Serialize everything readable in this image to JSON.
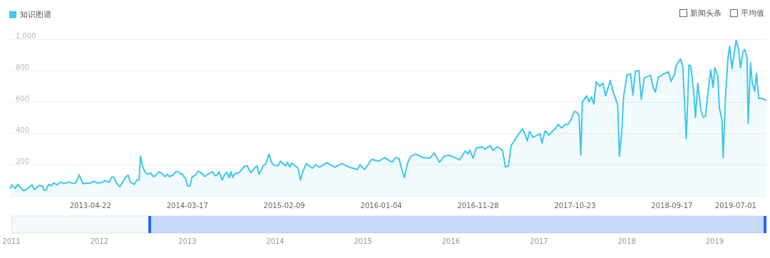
{
  "chart_data": {
    "type": "area",
    "legend": "top left",
    "grid": "y",
    "xlim": [
      "2012-07-23",
      "2019-08-04"
    ],
    "xticks": [
      "2013-04-22",
      "2014-03-17",
      "2015-02-09",
      "2016-01-04",
      "2016-11-28",
      "2017-10-23",
      "2018-09-17",
      "2019-07-01"
    ],
    "ylim": [
      0,
      1000
    ],
    "yticks": [
      {
        "value": 0,
        "label": null
      },
      200,
      400,
      600,
      800,
      {
        "value": 1000,
        "label": "1,000"
      }
    ],
    "x2lim": [
      "2011-01-01",
      "2019-08-04"
    ],
    "x2ticks": [
      "2011",
      "2012",
      "2013",
      "2014",
      "2015",
      "2016",
      "2017",
      "2018",
      "2019"
    ],
    "annotations": [
      "新闻头条",
      "平均值"
    ],
    "x": [
      "2012-07-23",
      "2012-07-29",
      "2012-08-10",
      "2012-08-18",
      "2012-08-26",
      "2012-09-07",
      "2012-09-19",
      "2012-10-06",
      "2012-10-14",
      "2012-10-30",
      "2012-11-11",
      "2012-11-15",
      "2012-11-23",
      "2012-12-01",
      "2012-12-10",
      "2012-12-18",
      "2012-12-30",
      "2013-01-11",
      "2013-01-23",
      "2013-02-08",
      "2013-02-24",
      "2013-03-04",
      "2013-03-15",
      "2013-03-27",
      "2013-04-22",
      "2013-05-04",
      "2013-05-16",
      "2013-06-01",
      "2013-06-09",
      "2013-06-25",
      "2013-07-03",
      "2013-07-11",
      "2013-07-19",
      "2013-07-31",
      "2013-08-08",
      "2013-08-21",
      "2013-08-29",
      "2013-09-04",
      "2013-09-18",
      "2013-09-26",
      "2013-10-04",
      "2013-10-09",
      "2013-10-16",
      "2013-10-24",
      "2013-11-01",
      "2013-11-13",
      "2013-11-21",
      "2013-11-29",
      "2013-12-10",
      "2013-12-19",
      "2013-12-31",
      "2014-01-08",
      "2014-01-16",
      "2014-01-29",
      "2014-02-06",
      "2014-02-14",
      "2014-02-22",
      "2014-02-28",
      "2014-03-06",
      "2014-03-10",
      "2014-03-18",
      "2014-03-26",
      "2014-04-02",
      "2014-04-15",
      "2014-04-23",
      "2014-05-06",
      "2014-05-14",
      "2014-05-30",
      "2014-06-11",
      "2014-06-19",
      "2014-06-27",
      "2014-07-03",
      "2014-07-13",
      "2014-07-24",
      "2014-07-30",
      "2014-08-06",
      "2014-08-12",
      "2014-08-18",
      "2014-08-26",
      "2014-09-03",
      "2014-09-12",
      "2014-09-24",
      "2014-10-06",
      "2014-10-18",
      "2014-10-26",
      "2014-11-03",
      "2014-11-09",
      "2014-11-15",
      "2014-11-23",
      "2014-11-29",
      "2014-12-09",
      "2014-12-19",
      "2014-12-29",
      "2015-01-06",
      "2015-01-19",
      "2015-01-27",
      "2015-02-13",
      "2015-02-20",
      "2015-02-28",
      "2015-03-06",
      "2015-03-28",
      "2015-04-05",
      "2015-04-13",
      "2015-04-25",
      "2015-05-15",
      "2015-05-27",
      "2015-06-08",
      "2015-07-03",
      "2015-07-31",
      "2015-08-24",
      "2015-09-17",
      "2015-10-16",
      "2015-10-24",
      "2015-11-09",
      "2015-12-03",
      "2015-12-27",
      "2016-01-16",
      "2016-02-10",
      "2016-02-22",
      "2016-03-05",
      "2016-03-13",
      "2016-03-23",
      "2016-04-02",
      "2016-04-14",
      "2016-04-30",
      "2016-05-24",
      "2016-06-18",
      "2016-07-02",
      "2016-07-20",
      "2016-08-05",
      "2016-08-20",
      "2016-09-11",
      "2016-09-26",
      "2016-10-04",
      "2016-10-15",
      "2016-10-25",
      "2016-10-31",
      "2016-11-11",
      "2016-11-22",
      "2016-12-12",
      "2016-12-20",
      "2017-01-09",
      "2017-01-17",
      "2017-02-02",
      "2017-02-19",
      "2017-03-01",
      "2017-03-11",
      "2017-03-20",
      "2017-03-31",
      "2017-04-12",
      "2017-04-28",
      "2017-05-06",
      "2017-05-14",
      "2017-05-22",
      "2017-06-03",
      "2017-06-27",
      "2017-07-03",
      "2017-07-14",
      "2017-07-26",
      "2017-08-19",
      "2017-08-27",
      "2017-09-08",
      "2017-09-20",
      "2017-09-30",
      "2017-10-10",
      "2017-10-21",
      "2017-10-30",
      "2017-11-06",
      "2017-11-12",
      "2017-11-17",
      "2017-12-02",
      "2017-12-10",
      "2017-12-18",
      "2017-12-26",
      "2018-01-03",
      "2018-01-15",
      "2018-01-26",
      "2018-02-04",
      "2018-02-20",
      "2018-03-02",
      "2018-03-17",
      "2018-03-23",
      "2018-03-31",
      "2018-04-06",
      "2018-04-18",
      "2018-04-30",
      "2018-05-08",
      "2018-05-16",
      "2018-05-28",
      "2018-06-05",
      "2018-06-15",
      "2018-07-07",
      "2018-07-15",
      "2018-07-23",
      "2018-08-02",
      "2018-08-25",
      "2018-09-06",
      "2018-09-14",
      "2018-09-26",
      "2018-10-02",
      "2018-10-16",
      "2018-10-24",
      "2018-11-05",
      "2018-11-14",
      "2018-11-20",
      "2018-11-30",
      "2018-12-06",
      "2018-12-14",
      "2018-12-24",
      "2019-01-01",
      "2019-01-09",
      "2019-01-17",
      "2019-01-27",
      "2019-02-04",
      "2019-02-10",
      "2019-02-20",
      "2019-02-25",
      "2019-03-06",
      "2019-03-10",
      "2019-03-18",
      "2019-03-26",
      "2019-04-01",
      "2019-04-09",
      "2019-04-17",
      "2019-04-23",
      "2019-05-01",
      "2019-05-08",
      "2019-05-16",
      "2019-05-22",
      "2019-05-30",
      "2019-06-03",
      "2019-06-11",
      "2019-06-17",
      "2019-06-25",
      "2019-07-01",
      "2019-07-09",
      "2019-07-17",
      "2019-07-29",
      "2019-08-04"
    ],
    "series": [
      {
        "name": "知识图谱",
        "color": "#3ec6ee",
        "values": [
          48,
          71,
          48,
          74,
          59,
          33,
          44,
          71,
          41,
          68,
          64,
          38,
          38,
          74,
          64,
          83,
          71,
          89,
          79,
          89,
          79,
          86,
          135,
          79,
          83,
          94,
          83,
          86,
          98,
          89,
          120,
          120,
          83,
          59,
          86,
          124,
          132,
          89,
          74,
          101,
          101,
          253,
          192,
          155,
          139,
          147,
          124,
          129,
          155,
          147,
          124,
          139,
          124,
          135,
          155,
          155,
          139,
          144,
          120,
          117,
          64,
          64,
          120,
          135,
          159,
          144,
          124,
          144,
          155,
          129,
          135,
          155,
          101,
          144,
          150,
          117,
          155,
          120,
          144,
          144,
          155,
          185,
          192,
          150,
          162,
          185,
          192,
          139,
          162,
          192,
          207,
          268,
          211,
          195,
          192,
          222,
          192,
          215,
          185,
          210,
          177,
          101,
          155,
          207,
          177,
          199,
          184,
          212,
          184,
          207,
          184,
          169,
          200,
          169,
          234,
          222,
          245,
          215,
          245,
          238,
          177,
          116,
          207,
          253,
          268,
          245,
          241,
          275,
          215,
          253,
          260,
          245,
          230,
          253,
          286,
          268,
          292,
          241,
          306,
          314,
          298,
          321,
          291,
          314,
          291,
          185,
          192,
          321,
          351,
          389,
          427,
          397,
          351,
          412,
          374,
          397,
          336,
          416,
          389,
          434,
          457,
          434,
          457,
          457,
          487,
          540,
          533,
          510,
          260,
          601,
          638,
          601,
          632,
          586,
          729,
          700,
          719,
          639,
          736,
          661,
          586,
          253,
          420,
          631,
          773,
          778,
          642,
          797,
          800,
          616,
          752,
          771,
          695,
          662,
          759,
          783,
          791,
          730,
          775,
          835,
          873,
          828,
          366,
          835,
          830,
          668,
          502,
          719,
          555,
          502,
          510,
          653,
          803,
          692,
          818,
          765,
          566,
          487,
          245,
          631,
          873,
          955,
          812,
          918,
          993,
          940,
          818,
          918,
          934,
          887,
          464,
          850,
          719,
          668,
          783,
          623,
          623,
          616,
          608
        ]
      }
    ]
  }
}
